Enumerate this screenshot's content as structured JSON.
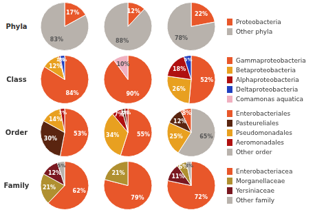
{
  "chart_data": [
    {
      "type": "pie",
      "title": "Phyla",
      "legend": "right",
      "legend_entries": [
        {
          "name": "Proteobacteria",
          "color": "#e8572a"
        },
        {
          "name": "Other phyla",
          "color": "#b8b2ac"
        }
      ],
      "pies": [
        {
          "type": "pie",
          "values": [
            17,
            83
          ],
          "value_labels": [
            "17%",
            "83%"
          ],
          "colors": [
            "#e8572a",
            "#b8b2ac"
          ],
          "data_labels": true
        },
        {
          "type": "pie",
          "values": [
            12,
            88
          ],
          "value_labels": [
            "12%",
            "88%"
          ],
          "colors": [
            "#e8572a",
            "#b8b2ac"
          ],
          "data_labels": true
        },
        {
          "type": "pie",
          "values": [
            22,
            78
          ],
          "value_labels": [
            "22%",
            "78%"
          ],
          "colors": [
            "#e8572a",
            "#b8b2ac"
          ],
          "data_labels": true
        }
      ]
    },
    {
      "type": "pie",
      "title": "Class",
      "legend": "right",
      "legend_entries": [
        {
          "name": "Gammaproteobacteria",
          "color": "#e8572a"
        },
        {
          "name": "Betaproteobacteria",
          "color": "#e8a020"
        },
        {
          "name": "Alphaproteobacteria",
          "color": "#b01010"
        },
        {
          "name": "Deltaproteobacteria",
          "color": "#2040c0"
        },
        {
          "name": "Comamonas aquatica",
          "color": "#f0b0c0"
        }
      ],
      "pies": [
        {
          "type": "pie",
          "values": [
            84,
            12,
            1,
            3
          ],
          "value_labels": [
            "84%",
            "12%",
            "1%",
            "3%"
          ],
          "colors": [
            "#e8572a",
            "#e8a020",
            "#b01010",
            "#2040c0"
          ],
          "data_labels": true
        },
        {
          "type": "pie",
          "values": [
            90,
            10
          ],
          "value_labels": [
            "90%",
            "10%"
          ],
          "colors": [
            "#e8572a",
            "#f0b0c0"
          ],
          "data_labels": true
        },
        {
          "type": "pie",
          "values": [
            52,
            26,
            18,
            5
          ],
          "value_labels": [
            "52%",
            "26%",
            "18%",
            "5%"
          ],
          "colors": [
            "#e8572a",
            "#e8a020",
            "#b01010",
            "#2040c0"
          ],
          "data_labels": true
        }
      ]
    },
    {
      "type": "pie",
      "title": "Order",
      "legend": "right",
      "legend_entries": [
        {
          "name": "Enterobacteriales",
          "color": "#e8572a"
        },
        {
          "name": "Pasteureliales",
          "color": "#5a2510"
        },
        {
          "name": "Pseudomonadales",
          "color": "#e8a020"
        },
        {
          "name": "Aeromonadales",
          "color": "#b01010"
        },
        {
          "name": "Other order",
          "color": "#b8b2ac"
        }
      ],
      "pies": [
        {
          "type": "pie",
          "values": [
            53,
            30,
            14,
            3
          ],
          "value_labels": [
            "53%",
            "30%",
            "14%",
            "3%"
          ],
          "colors": [
            "#e8572a",
            "#5a2510",
            "#e8a020",
            "#b01010"
          ],
          "data_labels": true
        },
        {
          "type": "pie",
          "values": [
            55,
            34,
            7,
            2,
            2
          ],
          "value_labels": [
            "55%",
            "34%",
            "7%",
            "2%",
            "2%"
          ],
          "colors": [
            "#e8572a",
            "#e8a020",
            "#b01010",
            "#5a2510",
            "#b01010"
          ],
          "data_labels": true
        },
        {
          "type": "pie",
          "values": [
            65,
            25,
            12,
            8
          ],
          "value_labels": [
            "65%",
            "25%",
            "12%",
            "8%"
          ],
          "colors": [
            "#b8b2ac",
            "#e8a020",
            "#5a2510",
            "#e8572a"
          ],
          "data_labels": true
        }
      ]
    },
    {
      "type": "pie",
      "title": "Family",
      "legend": "right",
      "legend_entries": [
        {
          "name": "Enterobacteriacea",
          "color": "#e8572a"
        },
        {
          "name": "Morganellaceae",
          "color": "#b09030"
        },
        {
          "name": "Yersiniaceae",
          "color": "#7a1820"
        },
        {
          "name": "Other family",
          "color": "#b8b2ac"
        }
      ],
      "pies": [
        {
          "type": "pie",
          "values": [
            62,
            21,
            12,
            5
          ],
          "value_labels": [
            "62%",
            "21%",
            "12%",
            "5%"
          ],
          "colors": [
            "#e8572a",
            "#b09030",
            "#7a1820",
            "#b8b2ac"
          ],
          "data_labels": true
        },
        {
          "type": "pie",
          "values": [
            79,
            21
          ],
          "value_labels": [
            "79%",
            "21%"
          ],
          "colors": [
            "#e8572a",
            "#b09030"
          ],
          "data_labels": true
        },
        {
          "type": "pie",
          "values": [
            72,
            11,
            6,
            3
          ],
          "value_labels": [
            "72%",
            "11%",
            "6%",
            "3%"
          ],
          "colors": [
            "#e8572a",
            "#7a1820",
            "#b09030",
            "#b8b2ac"
          ],
          "data_labels": true
        }
      ]
    }
  ]
}
